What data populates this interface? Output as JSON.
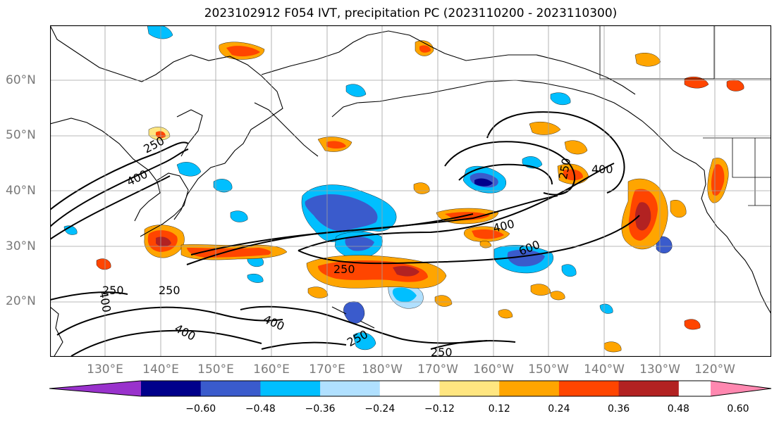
{
  "title": "2023102912 F054 IVT, precipitation PC (2023110200 - 2023110300)",
  "lat_labels": [
    "60°N",
    "50°N",
    "40°N",
    "30°N",
    "20°N"
  ],
  "lon_labels": [
    "130°E",
    "140°E",
    "150°E",
    "160°E",
    "170°E",
    "180°W",
    "170°W",
    "160°W",
    "150°W",
    "140°W",
    "130°W",
    "120°W"
  ],
  "contour_labels": [
    "250",
    "400",
    "400",
    "250",
    "400",
    "600",
    "250",
    "400",
    "250",
    "250",
    "400",
    "400",
    "250",
    "250"
  ],
  "colorbar": {
    "ticks": [
      "−0.60",
      "−0.48",
      "−0.36",
      "−0.24",
      "−0.12",
      "0.12",
      "0.24",
      "0.36",
      "0.48",
      "0.60"
    ],
    "colors": [
      "#9932cc",
      "#00008b",
      "#3a5bcc",
      "#00bfff",
      "#b0e0ff",
      "#ffffff",
      "#ffe680",
      "#ffa500",
      "#ff4500",
      "#b22222",
      "#ff88b0"
    ]
  }
}
